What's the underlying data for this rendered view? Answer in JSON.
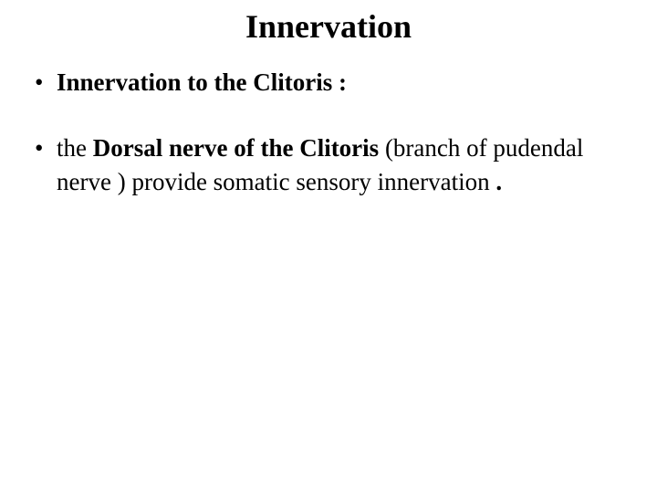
{
  "slide": {
    "title": "Innervation",
    "title_fontsize": 36,
    "title_fontweight": "bold",
    "title_align": "center",
    "background_color": "#ffffff",
    "text_color": "#000000",
    "font_family": "Times New Roman",
    "bullets": [
      {
        "segments": [
          {
            "text": "Innervation to the Clitoris :",
            "bold": true
          }
        ]
      },
      {
        "segments": [
          {
            "text": "the ",
            "bold": false
          },
          {
            "text": "Dorsal nerve of the Clitoris ",
            "bold": true
          },
          {
            "text": "(branch of pudendal nerve ) provide somatic sensory innervation ",
            "bold": false
          },
          {
            "text": ".",
            "bold": true
          }
        ]
      }
    ],
    "bullet_fontsize": 27,
    "bullet_lineheight": 1.35
  }
}
